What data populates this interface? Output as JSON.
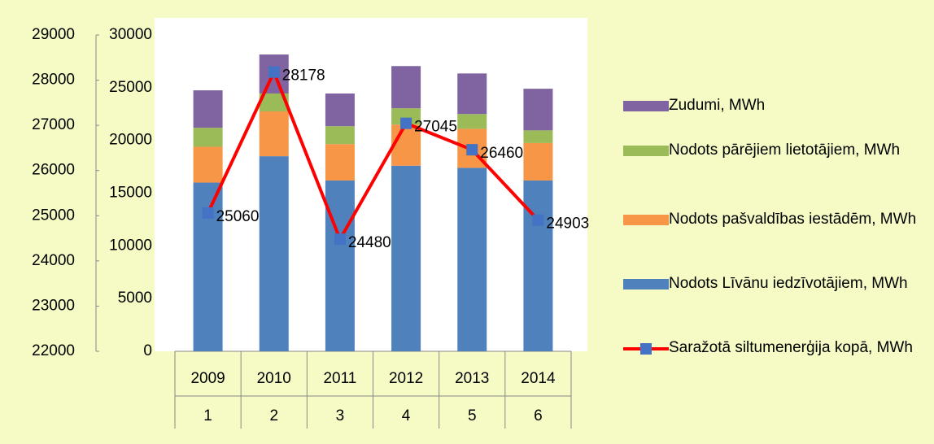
{
  "chart_data": {
    "type": "bar",
    "categories": [
      "2009",
      "2010",
      "2011",
      "2012",
      "2013",
      "2014"
    ],
    "category_numbers": [
      1,
      2,
      3,
      4,
      5,
      6
    ],
    "series": [
      {
        "name": "Nodots Līvānu iedzīvotājiem, MWh",
        "color": "#4f81bd",
        "axis": "y2",
        "values": [
          16000,
          18500,
          16200,
          17600,
          17400,
          16200
        ]
      },
      {
        "name": "Nodots pašvaldības iestādēm, MWh",
        "color": "#f79646",
        "axis": "y2",
        "values": [
          3400,
          4250,
          3450,
          3900,
          3700,
          3550
        ]
      },
      {
        "name": "Nodots pārējiem lietotājiem, MWh",
        "color": "#9bbb59",
        "axis": "y2",
        "values": [
          1800,
          1700,
          1700,
          1550,
          1400,
          1200
        ]
      },
      {
        "name": "Zudumi, MWh",
        "color": "#8064a2",
        "axis": "y2",
        "values": [
          3550,
          3700,
          3100,
          4000,
          3850,
          3950
        ]
      },
      {
        "name": "Saražotā siltumenerģija kopā, MWh",
        "type": "line",
        "color": "#ff0000",
        "marker_color": "#4472c4",
        "axis": "y",
        "values": [
          25060,
          28178,
          24480,
          27045,
          26460,
          24903
        ]
      }
    ],
    "ylim": [
      22000,
      29000
    ],
    "yticks": [
      22000,
      23000,
      24000,
      25000,
      26000,
      27000,
      28000,
      29000
    ],
    "y2lim": [
      0,
      30000
    ],
    "y2ticks": [
      0,
      5000,
      10000,
      15000,
      20000,
      25000,
      30000
    ],
    "grid": false,
    "legend": "right"
  }
}
